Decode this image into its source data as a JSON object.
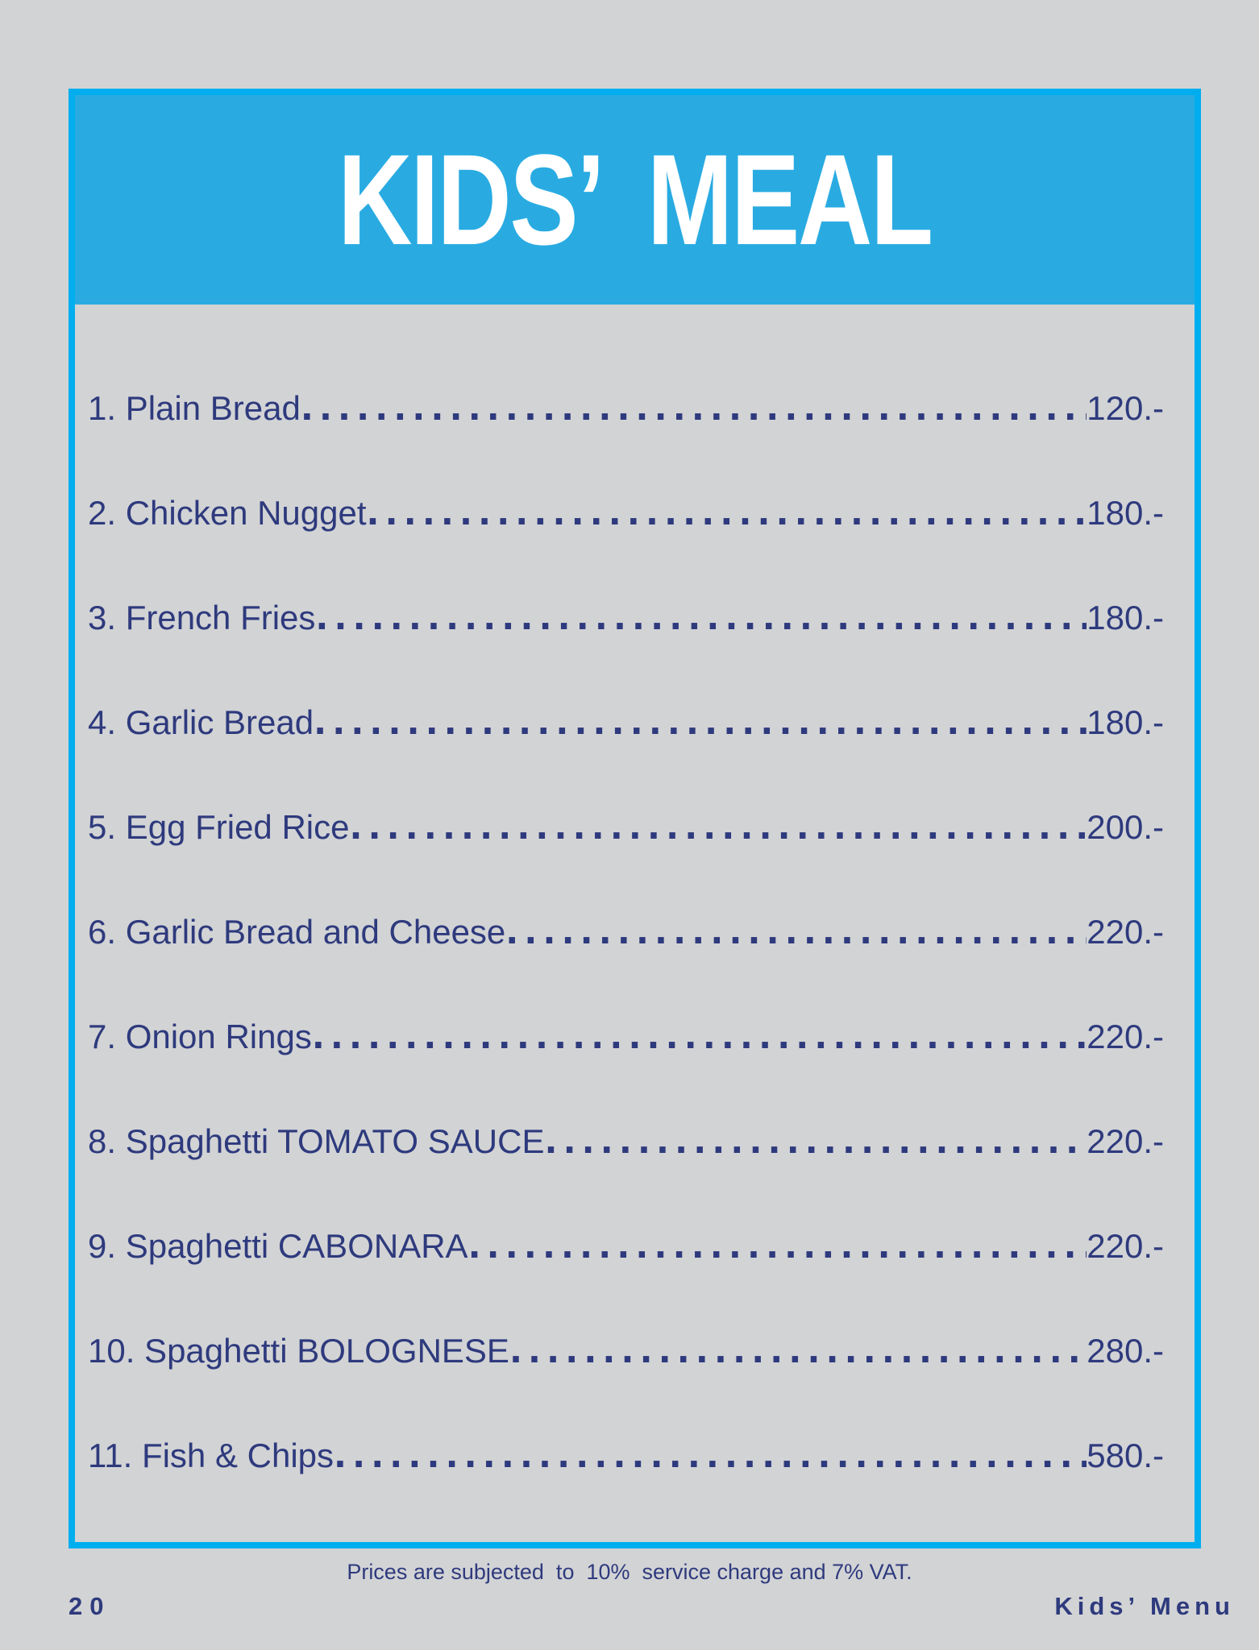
{
  "page": {
    "background_color": "#d2d3d5"
  },
  "header": {
    "title": "KIDS’ MEAL",
    "background_color": "#29abe2",
    "text_color": "#ffffff"
  },
  "frame": {
    "border_color": "#00aeef"
  },
  "menu": {
    "text_color": "#2e3a7d",
    "currency_suffix": ".-",
    "items": [
      {
        "label": "1. Plain Bread",
        "price": "120.-",
        "price_value": 120
      },
      {
        "label": "2. Chicken Nugget",
        "price": "180.-",
        "price_value": 180
      },
      {
        "label": "3. French Fries",
        "price": "180.-",
        "price_value": 180
      },
      {
        "label": "4. Garlic Bread",
        "price": "180.-",
        "price_value": 180
      },
      {
        "label": "5. Egg Fried Rice",
        "price": "200.-",
        "price_value": 200
      },
      {
        "label": "6. Garlic Bread and Cheese",
        "price": "220.-",
        "price_value": 220
      },
      {
        "label": "7. Onion Rings",
        "price": "220.-",
        "price_value": 220
      },
      {
        "label": "8. Spaghetti TOMATO SAUCE",
        "price": "220.-",
        "price_value": 220
      },
      {
        "label": "9. Spaghetti CABONARA",
        "price": "220.-",
        "price_value": 220
      },
      {
        "label": "10. Spaghetti BOLOGNESE",
        "price": "280.-",
        "price_value": 280
      },
      {
        "label": "11. Fish & Chips",
        "price": "580.-",
        "price_value": 580
      }
    ]
  },
  "footer": {
    "notice": "Prices are subjected  to  10%  service charge and 7% VAT.",
    "page_number": "20",
    "section_label": "Kids’ Menu"
  }
}
